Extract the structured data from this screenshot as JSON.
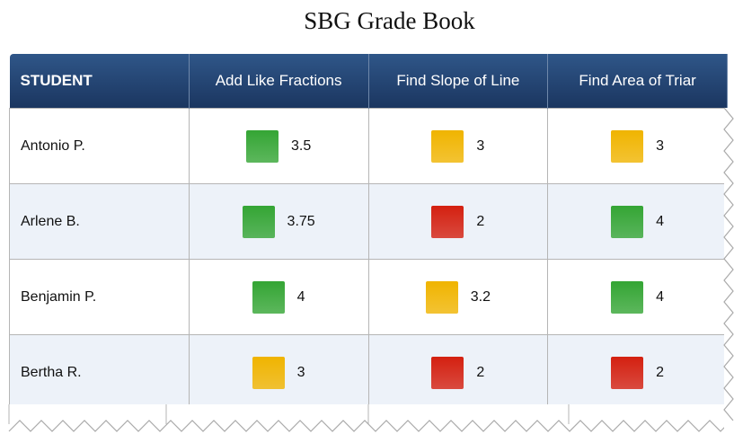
{
  "title": "SBG Grade Book",
  "table": {
    "header": [
      "STUDENT",
      "Add Like Fractions",
      "Find Slope of Line",
      "Find Area of Triar"
    ],
    "rows": [
      {
        "student": "Antonio P.",
        "scores": [
          {
            "value": 3.5,
            "color": "#34a534"
          },
          {
            "value": 3,
            "color": "#f0b400"
          },
          {
            "value": 3,
            "color": "#f0b400"
          }
        ]
      },
      {
        "student": "Arlene B.",
        "scores": [
          {
            "value": 3.75,
            "color": "#34a534"
          },
          {
            "value": 2,
            "color": "#d42010"
          },
          {
            "value": 4,
            "color": "#34a534"
          }
        ]
      },
      {
        "student": "Benjamin P.",
        "scores": [
          {
            "value": 4,
            "color": "#34a534"
          },
          {
            "value": 3.2,
            "color": "#f0b400"
          },
          {
            "value": 4,
            "color": "#34a534"
          }
        ]
      },
      {
        "student": "Bertha R.",
        "scores": [
          {
            "value": 3,
            "color": "#f0b400"
          },
          {
            "value": 2,
            "color": "#d42010"
          },
          {
            "value": 2,
            "color": "#d42010"
          }
        ]
      }
    ]
  }
}
